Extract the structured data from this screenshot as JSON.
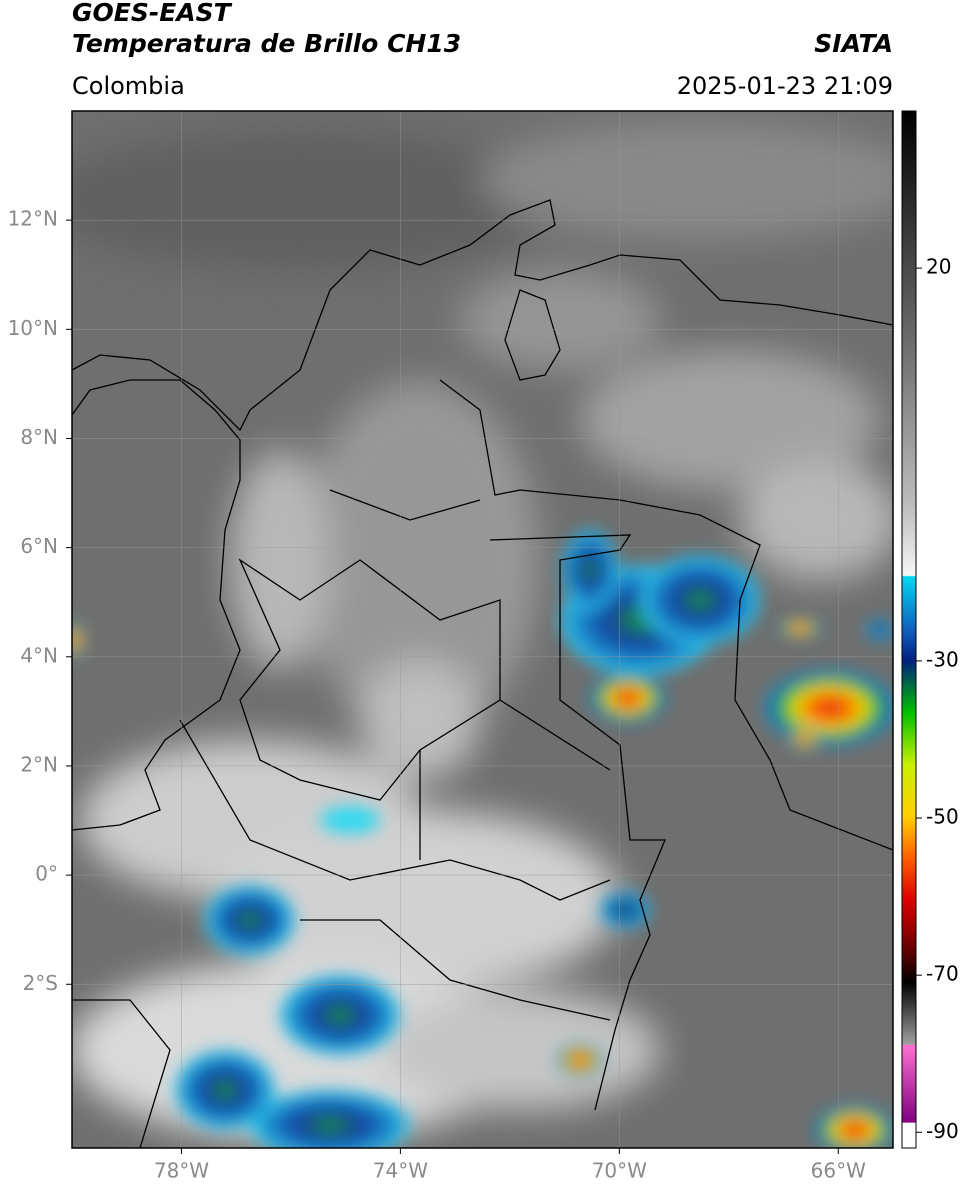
{
  "header": {
    "title": "GOES-EAST",
    "subtitle": "Temperatura de Brillo CH13",
    "source": "SIATA",
    "region": "Colombia",
    "timestamp": "2025-01-23 21:09"
  },
  "map": {
    "xlim": [
      -80,
      -65
    ],
    "ylim": [
      -5,
      14
    ],
    "xticks": [
      {
        "value": -78,
        "label": "78°W"
      },
      {
        "value": -74,
        "label": "74°W"
      },
      {
        "value": -70,
        "label": "70°W"
      },
      {
        "value": -66,
        "label": "66°W"
      }
    ],
    "yticks": [
      {
        "value": 12,
        "label": "12°N"
      },
      {
        "value": 10,
        "label": "10°N"
      },
      {
        "value": 8,
        "label": "8°N"
      },
      {
        "value": 6,
        "label": "6°N"
      },
      {
        "value": 4,
        "label": "4°N"
      },
      {
        "value": 2,
        "label": "2°N"
      },
      {
        "value": 0,
        "label": "0°"
      },
      {
        "value": -2,
        "label": "2°S"
      }
    ],
    "grid": true
  },
  "colorbar": {
    "lim": [
      -92,
      40
    ],
    "ticks": [
      20,
      -30,
      -50,
      -70,
      -90
    ]
  }
}
